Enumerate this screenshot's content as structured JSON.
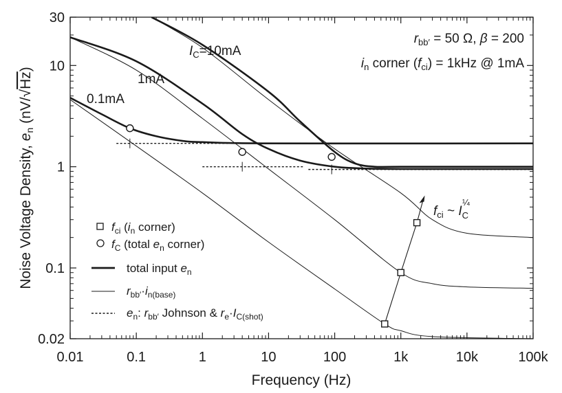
{
  "chart_data": {
    "type": "line",
    "xlabel": "Frequency (Hz)",
    "ylabel_parts": {
      "lead": "Noise Voltage Density, ",
      "sym": "e",
      "sub": "n",
      "unit_open": " (nV/√",
      "unit_rad": "Hz",
      "unit_close": ")"
    },
    "x_scale": "log",
    "y_scale": "log",
    "xlim": [
      0.01,
      100000
    ],
    "ylim": [
      0.02,
      30
    ],
    "x_ticks": [
      {
        "v": 0.01,
        "label": "0.01"
      },
      {
        "v": 0.1,
        "label": "0.1"
      },
      {
        "v": 1,
        "label": "1"
      },
      {
        "v": 10,
        "label": "10"
      },
      {
        "v": 100,
        "label": "100"
      },
      {
        "v": 1000,
        "label": "1k"
      },
      {
        "v": 10000,
        "label": "10k"
      },
      {
        "v": 100000,
        "label": "100k"
      }
    ],
    "y_ticks": [
      {
        "v": 0.02,
        "label": "0.02"
      },
      {
        "v": 0.1,
        "label": "0.1"
      },
      {
        "v": 1,
        "label": "1"
      },
      {
        "v": 10,
        "label": "10"
      },
      {
        "v": 30,
        "label": "30"
      }
    ],
    "grid": false,
    "params": {
      "line1": {
        "sym": "r",
        "sub": "bb′",
        "rest1": " = 50 Ω, ",
        "beta": "β",
        "rest2": " = 200"
      },
      "line2": {
        "sym": "i",
        "sub": "n",
        "rest1": " corner (",
        "fsym": "f",
        "fsub": "ci",
        "rest2": ") = 1kHz @ 1mA"
      }
    },
    "curve_labels": [
      {
        "sym": "I",
        "sub": "C",
        "rest": "=10mA"
      },
      {
        "text": "1mA"
      },
      {
        "text": "0.1mA"
      }
    ],
    "fci_annotation": {
      "sym": "f",
      "sub": "ci",
      "mid": " ~ ",
      "sym2": "I",
      "sub2": "C",
      "sup": "¼"
    },
    "legend": {
      "placement": "bottom-left",
      "entries": [
        {
          "marker": "square",
          "sym": "f",
          "sub": "ci",
          "rest_open": " (",
          "sym2": "i",
          "sub2": "n",
          "rest_close": " corner)"
        },
        {
          "marker": "circle",
          "sym": "f",
          "sub": "C",
          "rest_open": " (total ",
          "sym2": "e",
          "sub2": "n",
          "rest_close": " corner)"
        },
        {
          "marker": "thick-line",
          "text": "total input ",
          "sym": "e",
          "sub": "n"
        },
        {
          "marker": "thin-line",
          "sym": "r",
          "sub": "bb′",
          "dot": "·",
          "sym2": "i",
          "sub2": "n(base)"
        },
        {
          "marker": "dotted-line",
          "sym": "e",
          "sub": "n",
          "colon": ": ",
          "sym2": "r",
          "sub2": "bb′",
          "mid": " Johnson  &  ",
          "sym3": "r",
          "sub3": "e",
          "dot": "·",
          "sym4": "I",
          "sub4": "C(shot)"
        }
      ]
    },
    "series": [
      {
        "name": "total 10mA",
        "style": "thick",
        "points": [
          [
            0.17,
            30
          ],
          [
            1,
            16
          ],
          [
            10,
            5.5
          ],
          [
            30,
            2.8
          ],
          [
            100,
            1.4
          ],
          [
            200,
            1.08
          ],
          [
            400,
            1.0
          ],
          [
            1000,
            1.0
          ],
          [
            100000,
            1.0
          ]
        ]
      },
      {
        "name": "total 1mA",
        "style": "thick",
        "points": [
          [
            0.01,
            19
          ],
          [
            0.1,
            11
          ],
          [
            1,
            4.2
          ],
          [
            4,
            2.1
          ],
          [
            10,
            1.5
          ],
          [
            30,
            1.15
          ],
          [
            100,
            1.0
          ],
          [
            300,
            0.96
          ],
          [
            1000,
            0.95
          ],
          [
            100000,
            0.95
          ]
        ]
      },
      {
        "name": "total 0.1mA",
        "style": "thick",
        "points": [
          [
            0.01,
            4.8
          ],
          [
            0.03,
            3.3
          ],
          [
            0.08,
            2.4
          ],
          [
            0.2,
            2.0
          ],
          [
            0.5,
            1.8
          ],
          [
            1,
            1.75
          ],
          [
            10,
            1.7
          ],
          [
            100000,
            1.7
          ]
        ]
      },
      {
        "name": "rbb·in 10mA",
        "style": "thin",
        "points": [
          [
            0.17,
            30
          ],
          [
            1,
            15
          ],
          [
            10,
            4.6
          ],
          [
            100,
            1.5
          ],
          [
            1000,
            0.55
          ],
          [
            3000,
            0.3
          ],
          [
            10000,
            0.22
          ],
          [
            100000,
            0.2
          ]
        ]
      },
      {
        "name": "rbb·in 1mA",
        "style": "thin",
        "points": [
          [
            0.01,
            19
          ],
          [
            0.1,
            9
          ],
          [
            1,
            3.0
          ],
          [
            10,
            0.95
          ],
          [
            100,
            0.3
          ],
          [
            1000,
            0.09
          ],
          [
            3000,
            0.07
          ],
          [
            10000,
            0.065
          ],
          [
            100000,
            0.063
          ]
        ]
      },
      {
        "name": "rbb·in 0.1mA",
        "style": "thin",
        "points": [
          [
            0.01,
            4.6
          ],
          [
            0.1,
            1.6
          ],
          [
            1,
            0.55
          ],
          [
            10,
            0.18
          ],
          [
            100,
            0.062
          ],
          [
            570,
            0.028
          ],
          [
            1000,
            0.024
          ],
          [
            3000,
            0.021
          ],
          [
            100000,
            0.02
          ]
        ]
      },
      {
        "name": "en 0.1mA floor",
        "style": "dotted",
        "points": [
          [
            0.05,
            1.7
          ],
          [
            2.5,
            1.7
          ]
        ]
      },
      {
        "name": "en 1mA floor",
        "style": "dotted",
        "points": [
          [
            1,
            1.0
          ],
          [
            35,
            1.0
          ]
        ]
      },
      {
        "name": "en 10mA floor",
        "style": "dotted",
        "points": [
          [
            40,
            0.94
          ],
          [
            100000,
            0.94
          ]
        ]
      }
    ],
    "fc_points": [
      [
        0.08,
        2.4
      ],
      [
        4,
        1.4
      ],
      [
        90,
        1.25
      ]
    ],
    "fci_points": [
      [
        570,
        0.028
      ],
      [
        1000,
        0.09
      ],
      [
        1750,
        0.28
      ]
    ],
    "cross_marks": [
      [
        0.08,
        1.7
      ],
      [
        4,
        1.0
      ],
      [
        90,
        0.94
      ]
    ],
    "fci_arrow": {
      "from": [
        570,
        0.028
      ],
      "to": [
        2300,
        0.52
      ]
    }
  }
}
